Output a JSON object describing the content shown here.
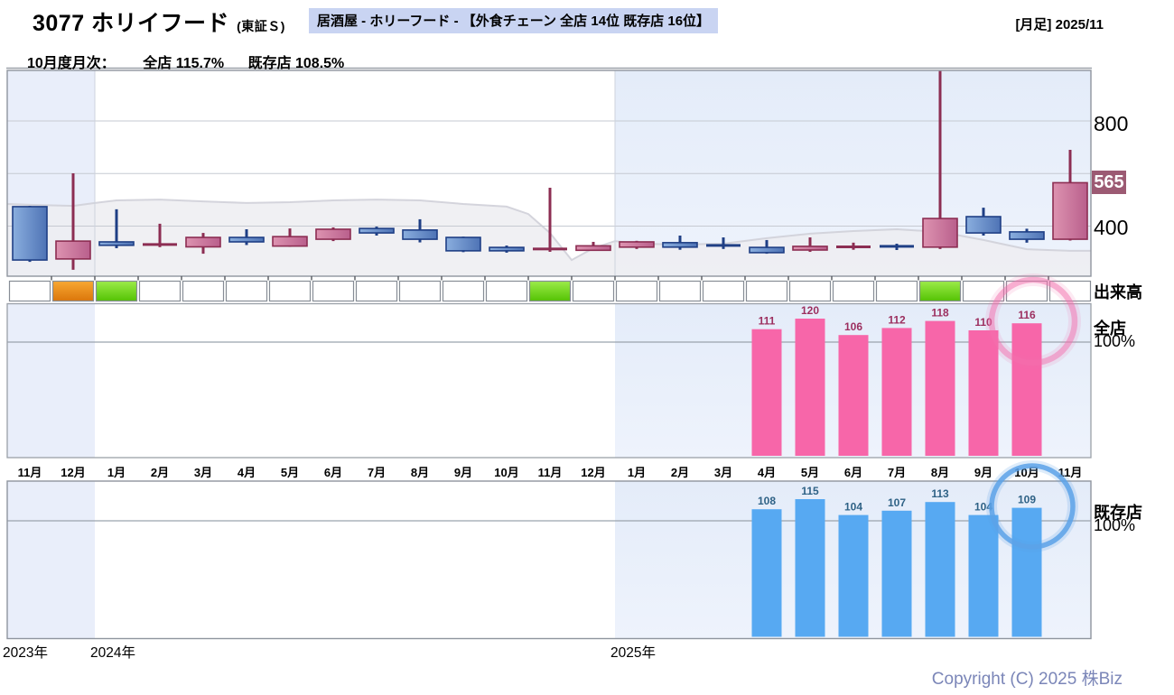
{
  "header": {
    "ticker_title": "3077 ホリイフード",
    "market": "(東証Ｓ)",
    "category_badge": "居酒屋 - ホリーフード - 【外食チェーン 全店 14位 既存店 16位】",
    "period_label": "[月足] 2025/11",
    "monthly_line": {
      "prefix": "10月度月次：",
      "zenten": "全店 115.7%",
      "kisonten": "既存店 108.5%"
    }
  },
  "right_axis": {
    "tick_800": "800",
    "tick_400": "400",
    "current_price": "565",
    "volume_label": "出来高",
    "zenten_label": "全店",
    "zenten_baseline": "100%",
    "kisonten_label": "既存店",
    "kisonten_baseline": "100%"
  },
  "footer": {
    "years": [
      {
        "label": "2023年"
      },
      {
        "label": "2024年"
      },
      {
        "label": "2025年"
      }
    ],
    "copyright": "Copyright (C) 2025 株Biz"
  },
  "colors": {
    "badge_bg": "#c9d4f2",
    "up_fill_light": "#dd93b0",
    "up_fill_dark": "#b95f8c",
    "up_stroke": "#8c2d52",
    "down_fill_light": "#8aaede",
    "down_fill_dark": "#4e73b5",
    "down_stroke": "#1f3f85",
    "zenten_bar": "#f766a9",
    "zenten_value": "#9c2f5f",
    "zenten_ring": "#f36fad",
    "kisonten_bar": "#57a9f2",
    "kisonten_value": "#2f6286",
    "kisonten_ring": "#5ca2e8",
    "volume_green_top": "#9cec48",
    "volume_green_bottom": "#54c204",
    "volume_orange_top": "#f8a833",
    "volume_orange_bottom": "#db760a",
    "price_badge_bg": "#9c5a73",
    "band_blue": "#e9eefa",
    "copyright_color": "#7b86b8"
  },
  "chart_data": [
    {
      "type": "candlestick",
      "title": "3077 ホリイフード 月足 2023/11 - 2025/11",
      "note": "red/pink = up (陽線), blue = down (陰線); values are approx yen",
      "months": [
        "2023-11",
        "2023-12",
        "2024-01",
        "2024-02",
        "2024-03",
        "2024-04",
        "2024-05",
        "2024-06",
        "2024-07",
        "2024-08",
        "2024-09",
        "2024-10",
        "2024-11",
        "2024-12",
        "2025-01",
        "2025-02",
        "2025-03",
        "2025-04",
        "2025-05",
        "2025-06",
        "2025-07",
        "2025-08",
        "2025-09",
        "2025-10",
        "2025-11"
      ],
      "month_tick_labels": [
        "11月",
        "12月",
        "1月",
        "2月",
        "3月",
        "4月",
        "5月",
        "6月",
        "7月",
        "8月",
        "9月",
        "10月",
        "11月",
        "12月",
        "1月",
        "2月",
        "3月",
        "4月",
        "5月",
        "6月",
        "7月",
        "8月",
        "9月",
        "10月",
        "11月"
      ],
      "ohlc": [
        [
          474,
          477,
          264,
          271
        ],
        [
          275,
          601,
          234,
          343
        ],
        [
          340,
          464,
          316,
          327
        ],
        [
          329,
          409,
          320,
          331
        ],
        [
          321,
          374,
          295,
          357
        ],
        [
          357,
          388,
          328,
          340
        ],
        [
          324,
          391,
          321,
          360
        ],
        [
          350,
          395,
          343,
          388
        ],
        [
          391,
          398,
          364,
          374
        ],
        [
          385,
          426,
          338,
          350
        ],
        [
          357,
          360,
          301,
          306
        ],
        [
          319,
          326,
          299,
          306
        ],
        [
          312,
          546,
          302,
          314
        ],
        [
          308,
          340,
          306,
          325
        ],
        [
          320,
          344,
          313,
          340
        ],
        [
          337,
          364,
          310,
          320
        ],
        [
          330,
          357,
          313,
          323
        ],
        [
          319,
          347,
          295,
          299
        ],
        [
          309,
          357,
          302,
          323
        ],
        [
          320,
          337,
          310,
          322
        ],
        [
          326,
          333,
          309,
          320
        ],
        [
          320,
          990,
          313,
          429
        ],
        [
          436,
          470,
          364,
          374
        ],
        [
          378,
          390,
          337,
          350
        ],
        [
          350,
          690,
          345,
          565
        ]
      ],
      "y_ticks": [
        400,
        800
      ],
      "y_range": [
        235,
        990
      ],
      "current_price": 565,
      "reference_line": {
        "x_months": [
          -0.52,
          0,
          1,
          1.5,
          2,
          3,
          4,
          5,
          6,
          7,
          8,
          9,
          10,
          11,
          11.5,
          12,
          12.5,
          13,
          13.5,
          14,
          15,
          16,
          17,
          18,
          19,
          20,
          21,
          22,
          23,
          24,
          24.48
        ],
        "prices": [
          484,
          481,
          477,
          488,
          498,
          501,
          494,
          488,
          491,
          498,
          501,
          498,
          484,
          474,
          446,
          374,
          271,
          316,
          343,
          333,
          330,
          333,
          354,
          371,
          381,
          388,
          378,
          347,
          312,
          306,
          306
        ]
      }
    },
    {
      "type": "volume-flags",
      "label": "出来高",
      "months_colored": {
        "2023-12": "orange",
        "2024-01": "green",
        "2024-11": "green",
        "2025-08": "green"
      }
    },
    {
      "type": "bar",
      "title": "全店 前年比 (%)",
      "ylabel": "100% baseline",
      "categories": [
        "2025-04",
        "2025-05",
        "2025-06",
        "2025-07",
        "2025-08",
        "2025-09",
        "2025-10"
      ],
      "values": [
        111,
        120,
        106,
        112,
        118,
        110,
        116
      ],
      "baseline": 100,
      "highlight": "2025-10"
    },
    {
      "type": "bar",
      "title": "既存店 前年比 (%)",
      "ylabel": "100% baseline",
      "categories": [
        "2025-04",
        "2025-05",
        "2025-06",
        "2025-07",
        "2025-08",
        "2025-09",
        "2025-10"
      ],
      "values": [
        108,
        115,
        104,
        107,
        113,
        104,
        109
      ],
      "baseline": 100,
      "highlight": "2025-10"
    }
  ]
}
